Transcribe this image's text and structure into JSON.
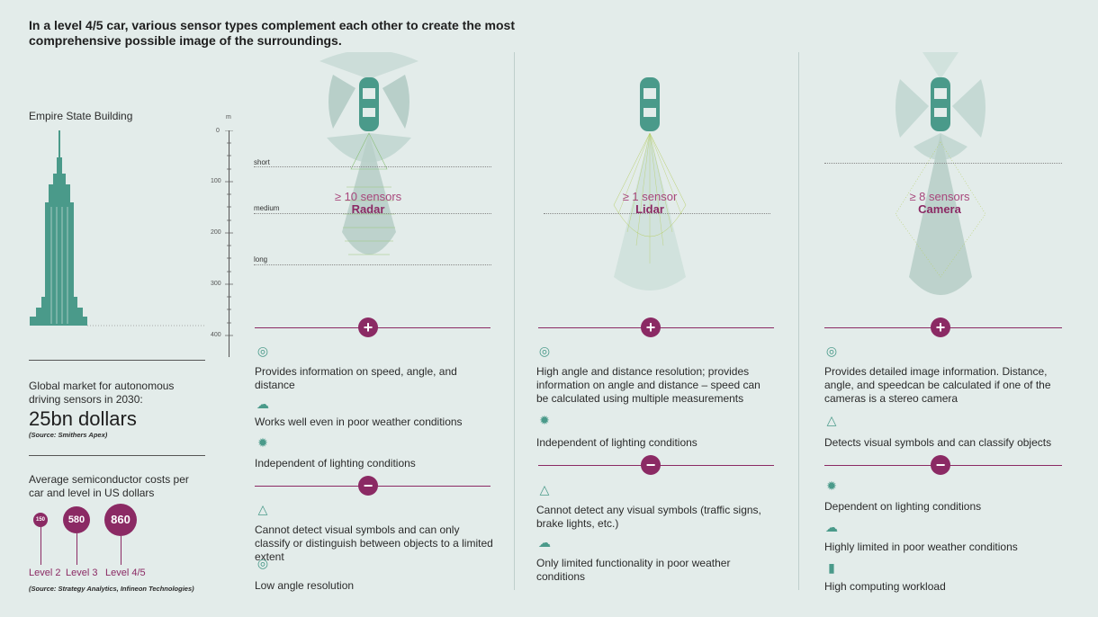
{
  "title": "In a level 4/5 car, various sensor types complement each other to create the most comprehensive possible image of the surroundings.",
  "empire": {
    "label": "Empire State Building"
  },
  "ruler": {
    "unit": "m",
    "ticks": [
      "0",
      "100",
      "200",
      "300",
      "400"
    ],
    "ranges": [
      "short",
      "medium",
      "long"
    ]
  },
  "market": {
    "text": "Global market for autonomous driving sensors in 2030:",
    "value": "25bn dollars",
    "source": "(Source: Smithers Apex)"
  },
  "semis": {
    "text": "Average semiconductor costs per car and level in US dollars",
    "values": [
      {
        "value": "150",
        "level": "Level 2"
      },
      {
        "value": "580",
        "level": "Level 3"
      },
      {
        "value": "860",
        "level": "Level 4/5"
      }
    ],
    "source": "(Source: Strategy Analytics, Infineon Technologies)"
  },
  "plus_symbol": "+",
  "minus_symbol": "−",
  "sensors": [
    {
      "count": "≥ 10 sensors",
      "name": "Radar",
      "pros": [
        {
          "icon": "radar-icon",
          "text": "Provides information on speed, angle, and distance"
        },
        {
          "icon": "weather-icon",
          "text": "Works well even in poor weather conditions"
        },
        {
          "icon": "sun-icon",
          "text": "Independent of lighting conditions"
        }
      ],
      "cons": [
        {
          "icon": "warning-sign-icon",
          "text": "Cannot detect visual symbols and can only classify or distinguish between objects to a limited extent"
        },
        {
          "icon": "radar-icon",
          "text": "Low angle resolution"
        }
      ]
    },
    {
      "count": "≥ 1 sensor",
      "name": "Lidar",
      "pros": [
        {
          "icon": "radar-icon",
          "text": "High angle and distance resolution; provides information on angle and distance – speed can be calculated using multiple measurements"
        },
        {
          "icon": "sun-icon",
          "text": "Independent of lighting conditions"
        }
      ],
      "cons": [
        {
          "icon": "warning-sign-icon",
          "text": "Cannot detect any visual symbols (traffic signs, brake lights, etc.)"
        },
        {
          "icon": "weather-icon",
          "text": "Only limited functionality in poor weather conditions"
        }
      ]
    },
    {
      "count": "≥ 8 sensors",
      "name": "Camera",
      "pros": [
        {
          "icon": "radar-icon",
          "text": "Provides detailed image information. Distance, angle, and speedcan be calculated if one of the cameras is a stereo camera"
        },
        {
          "icon": "warning-sign-icon",
          "text": "Detects visual symbols and can classify objects"
        }
      ],
      "cons": [
        {
          "icon": "sun-icon",
          "text": "Dependent on lighting conditions"
        },
        {
          "icon": "weather-icon",
          "text": "Highly limited in poor weather conditions"
        },
        {
          "icon": "chip-icon",
          "text": "High computing workload"
        }
      ]
    }
  ],
  "colors": {
    "accent": "#8b2a64",
    "teal": "#4a9a8a",
    "background": "#e3ecea"
  }
}
